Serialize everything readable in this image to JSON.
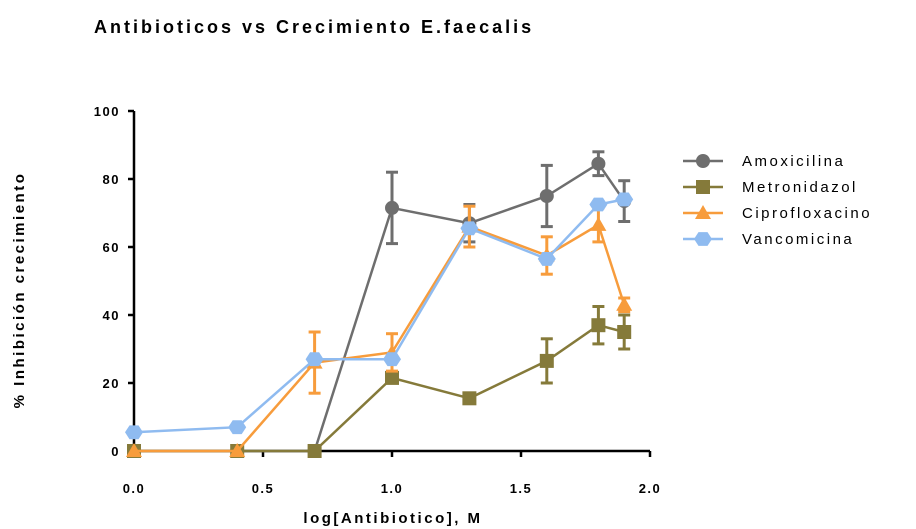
{
  "chart_data": {
    "type": "line",
    "title": "Antibioticos  vs Crecimiento E.faecalis",
    "xlabel": "log[Antibiotico], M",
    "ylabel": "% Inhibición crecimiento",
    "xlim": [
      0,
      2.0
    ],
    "ylim": [
      0,
      100
    ],
    "xticks": [
      "0.0",
      "0.5",
      "1.0",
      "1.5",
      "2.0"
    ],
    "yticks": [
      "0",
      "20",
      "40",
      "60",
      "80",
      "100"
    ],
    "grid": false,
    "legend_position": "right",
    "series": [
      {
        "name": "Amoxicilina",
        "color": "#6e6e6e",
        "marker": "circle",
        "x": [
          0,
          0.4,
          0.7,
          1.0,
          1.3,
          1.6,
          1.8,
          1.9
        ],
        "y": [
          0,
          0,
          0,
          71.5,
          67,
          75,
          84.5,
          73.5
        ],
        "err": [
          0,
          0,
          0,
          10.5,
          5.5,
          9,
          3.5,
          6
        ]
      },
      {
        "name": "Metronidazol",
        "color": "#857a3a",
        "marker": "square",
        "x": [
          0,
          0.4,
          0.7,
          1.0,
          1.3,
          1.6,
          1.8,
          1.9
        ],
        "y": [
          0,
          0,
          0,
          21.5,
          15.5,
          26.5,
          37,
          35
        ],
        "err": [
          0,
          0,
          0,
          1.5,
          0,
          6.5,
          5.5,
          5
        ]
      },
      {
        "name": "Ciprofloxacino",
        "color": "#f79c3c",
        "marker": "triangle",
        "x": [
          0,
          0.4,
          0.7,
          1.0,
          1.3,
          1.6,
          1.8,
          1.9
        ],
        "y": [
          0,
          0,
          26,
          29,
          66,
          57.5,
          66.5,
          43
        ],
        "err": [
          0,
          0,
          9,
          5.5,
          6,
          5.5,
          5,
          2
        ]
      },
      {
        "name": "Vancomicina",
        "color": "#8fbbf0",
        "marker": "hexagon",
        "x": [
          0,
          0.4,
          0.7,
          1.0,
          1.3,
          1.6,
          1.8,
          1.9
        ],
        "y": [
          5.5,
          7,
          27,
          27,
          65.5,
          56.5,
          72.5,
          74
        ],
        "err": [
          0,
          0,
          0,
          0,
          0,
          0,
          0,
          0
        ]
      }
    ]
  }
}
